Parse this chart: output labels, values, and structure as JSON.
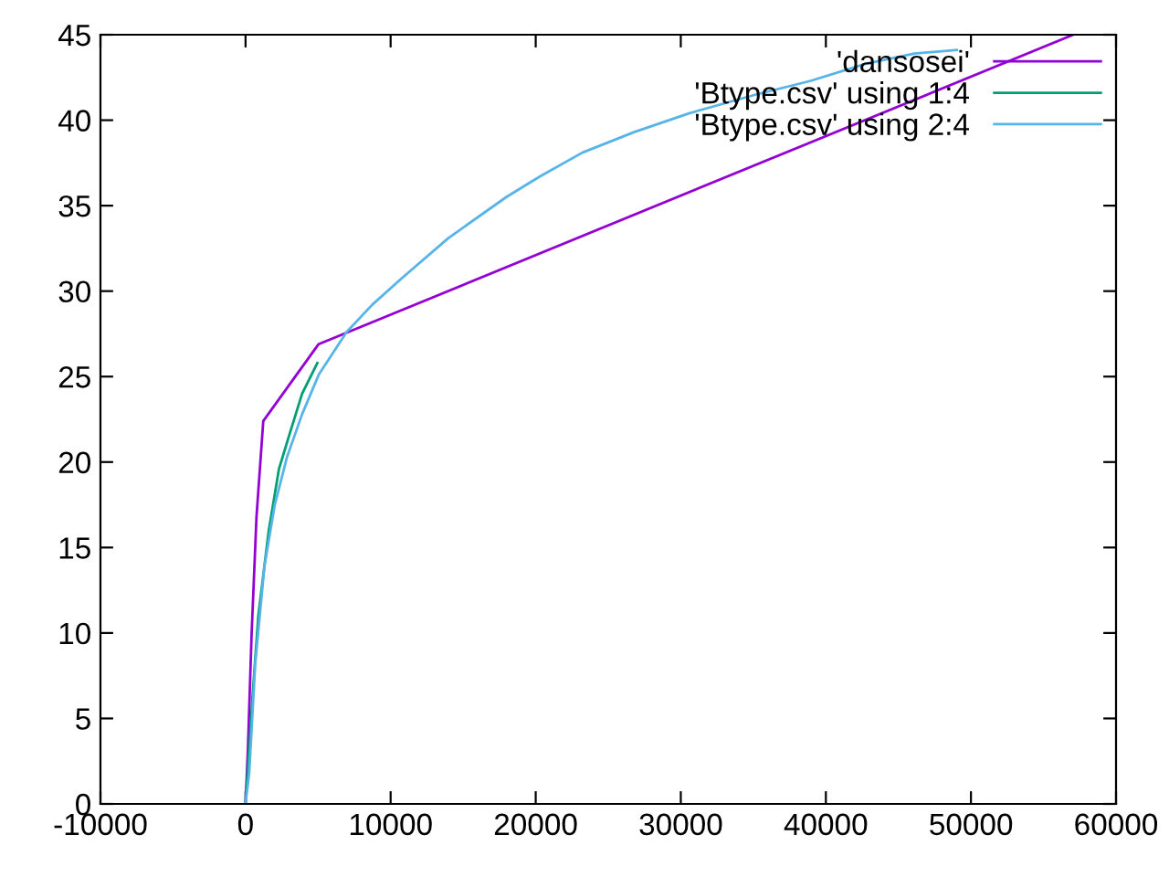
{
  "chart_data": {
    "type": "line",
    "xlim": [
      -10000,
      60000
    ],
    "ylim": [
      0,
      45
    ],
    "xticks": [
      -10000,
      0,
      10000,
      20000,
      30000,
      40000,
      50000,
      60000
    ],
    "yticks": [
      0,
      5,
      10,
      15,
      20,
      25,
      30,
      35,
      40,
      45
    ],
    "grid": false,
    "legend": "top right",
    "line_style": "solid",
    "marker": "none",
    "series": [
      {
        "name": "'dansosei'",
        "color": "#9400d3",
        "x": [
          0,
          164,
          416,
          756,
          1222,
          5038,
          57053
        ],
        "values": [
          0,
          3.2,
          9.9,
          16.8,
          22.4,
          26.9,
          45.0
        ]
      },
      {
        "name": "'Btype.csv' using 1:4",
        "color": "#009e73",
        "x": [
          0,
          466,
          882,
          1600,
          2305,
          3060,
          3900,
          4950
        ],
        "values": [
          0,
          6.1,
          11.0,
          16.0,
          19.6,
          21.7,
          24.0,
          25.8
        ]
      },
      {
        "name": "'Btype.csv' using 2:4",
        "color": "#56b4e9",
        "x": [
          0,
          252,
          668,
          1300,
          2015,
          2860,
          3900,
          5040,
          6965,
          8730,
          10830,
          13980,
          17970,
          20280,
          23210,
          26780,
          30560,
          35180,
          38950,
          42730,
          46100,
          49030
        ],
        "values": [
          0,
          1.8,
          8.2,
          13.9,
          17.5,
          20.3,
          22.8,
          25.1,
          27.6,
          29.2,
          30.8,
          33.1,
          35.5,
          36.7,
          38.1,
          39.3,
          40.4,
          41.5,
          42.3,
          43.3,
          43.9,
          44.1
        ]
      }
    ]
  }
}
